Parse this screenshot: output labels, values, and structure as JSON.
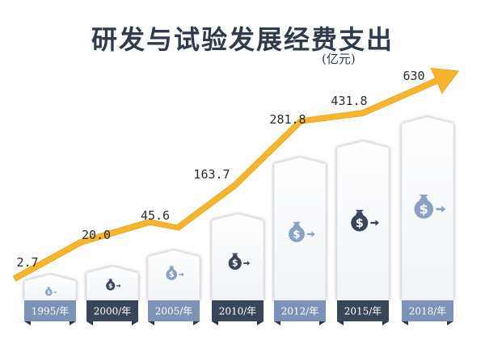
{
  "title": "研发与试验发展经费支出",
  "unit": "(亿元)",
  "colors": {
    "arrow": "#f6b52c",
    "dark_label": "#3b4559",
    "light_label": "#7b93b6",
    "icon_dark": "#3b4559",
    "icon_light": "#8aa1c6"
  },
  "chart_data": {
    "type": "bar",
    "categories": [
      "1995/年",
      "2000/年",
      "2005/年",
      "2010/年",
      "2012/年",
      "2015/年",
      "2018/年"
    ],
    "values": [
      2.7,
      20.0,
      45.6,
      163.7,
      281.8,
      431.8,
      630
    ],
    "value_labels": [
      "2.7",
      "20.0",
      "45.6",
      "163.7",
      "281.8",
      "431.8",
      "630"
    ],
    "title": "研发与试验发展经费支出",
    "ylabel": "(亿元)",
    "trend_arrow": true,
    "label_style": [
      "light",
      "dark",
      "light",
      "dark",
      "light",
      "dark",
      "light"
    ],
    "icon_style": [
      "light",
      "dark",
      "light",
      "dark",
      "light",
      "dark",
      "light"
    ],
    "icon_name": "money-bag-icon"
  }
}
